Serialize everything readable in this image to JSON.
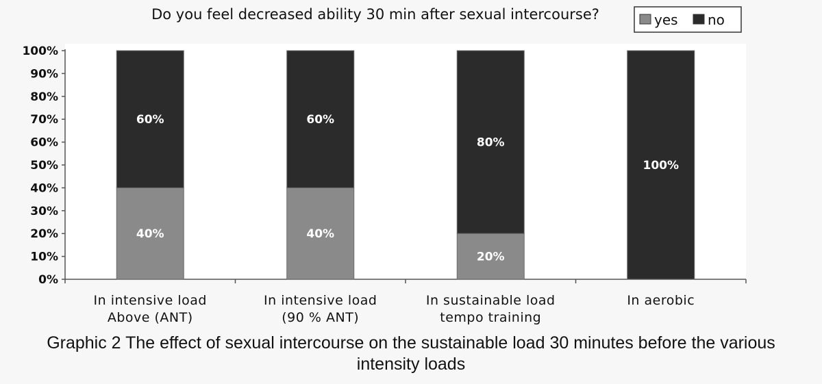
{
  "chart_data": {
    "type": "bar",
    "stacked": true,
    "percent": true,
    "title": "Do you feel decreased ability 30 min after sexual intercourse?",
    "categories": [
      [
        "In intensive load",
        "Above (ANT)"
      ],
      [
        "In intensive load",
        "(90 % ANT)"
      ],
      [
        "In sustainable load",
        "tempo training"
      ],
      [
        "In aerobic"
      ]
    ],
    "series": [
      {
        "name": "yes",
        "color": "#8a8a8a",
        "values": [
          40,
          40,
          20,
          0
        ],
        "labels": [
          "40%",
          "40%",
          "20%",
          ""
        ]
      },
      {
        "name": "no",
        "color": "#2b2b2b",
        "values": [
          60,
          60,
          80,
          100
        ],
        "labels": [
          "60%",
          "60%",
          "80%",
          "100%"
        ]
      }
    ],
    "ylim": [
      0,
      100
    ],
    "yticks": [
      "0%",
      "10%",
      "20%",
      "30%",
      "40%",
      "50%",
      "60%",
      "70%",
      "80%",
      "90%",
      "100%"
    ],
    "legend_position": "top-right",
    "grid": false
  },
  "caption": {
    "line1": "Graphic 2 The effect of sexual intercourse on the sustainable load  30 minutes before the various",
    "line2": "intensity loads"
  }
}
